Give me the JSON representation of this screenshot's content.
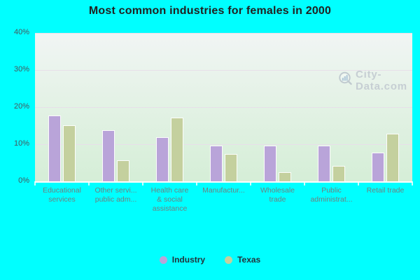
{
  "title": "Most common industries for females in 2000",
  "watermark": {
    "text": "City-Data.com",
    "icon": "magnifier-chart-icon"
  },
  "colors": {
    "canvas_bg": "#00ffff",
    "industry_bar": "#b9a4d9",
    "texas_bar": "#c4d09e",
    "bar_border": "#ffffff",
    "grid_line": "#e7dfe9",
    "plot_bg_top": "#f1f5f4",
    "plot_bg_bottom": "#d5eed7",
    "title_text": "#212121",
    "ytick_text": "#46565c",
    "xtick_text": "#6e8080",
    "legend_text": "#23323a",
    "watermark_text": "#c3cbd1"
  },
  "legend": {
    "items": [
      {
        "label": "Industry",
        "color": "#b9a4d9"
      },
      {
        "label": "Texas",
        "color": "#c4d09e"
      }
    ]
  },
  "chart_data": {
    "type": "bar",
    "title": "Most common industries for females in 2000",
    "categories": [
      "Educational services",
      "Other servi... public adm...",
      "Health care & social assistance",
      "Manufactur...",
      "Wholesale trade",
      "Public administrat...",
      "Retail trade"
    ],
    "category_display_lines": [
      [
        "Educational",
        "services"
      ],
      [
        "Other servi...",
        "public adm..."
      ],
      [
        "Health care",
        "& social",
        "assistance"
      ],
      [
        "Manufactur..."
      ],
      [
        "Wholesale",
        "trade"
      ],
      [
        "Public",
        "administrat..."
      ],
      [
        "Retail trade"
      ]
    ],
    "series": [
      {
        "name": "Industry",
        "color": "#b9a4d9",
        "values": [
          17.7,
          13.7,
          11.8,
          9.6,
          9.7,
          9.6,
          7.8
        ]
      },
      {
        "name": "Texas",
        "color": "#c4d09e",
        "values": [
          15.1,
          5.6,
          17.1,
          7.3,
          2.5,
          4.2,
          12.8
        ]
      }
    ],
    "ylabel": "",
    "xlabel": "",
    "ylim": [
      0,
      40
    ],
    "ytick_values": [
      0,
      10,
      20,
      30,
      40
    ],
    "ytick_labels": [
      "0%",
      "10%",
      "20%",
      "30%",
      "40%"
    ],
    "grid": "horizontal",
    "legend_position": "bottom-center"
  }
}
